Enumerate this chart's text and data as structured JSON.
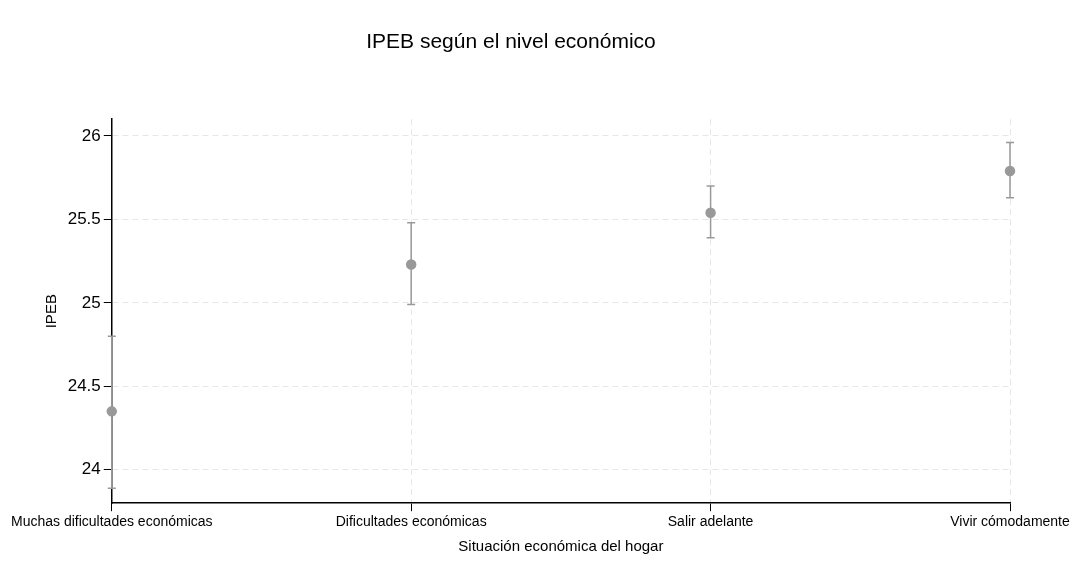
{
  "chart_data": {
    "type": "scatter",
    "title": "IPEB según el nivel económico",
    "xlabel": "Situación económica del hogar",
    "ylabel": "IPEB",
    "categories": [
      "Muchas dificultades económicas",
      "Dificultades económicas",
      "Salir adelante",
      "Vivir cómodamente"
    ],
    "values": [
      24.35,
      25.23,
      25.54,
      25.79
    ],
    "errors": [
      [
        23.89,
        24.8
      ],
      [
        24.99,
        25.48
      ],
      [
        25.39,
        25.7
      ],
      [
        25.63,
        25.96
      ]
    ],
    "color": "#999999",
    "marker": "circle",
    "ylim": [
      23.8,
      26.1
    ],
    "yticks": [
      24,
      24.5,
      25,
      25.5,
      26
    ],
    "grid": true,
    "legend": false
  }
}
